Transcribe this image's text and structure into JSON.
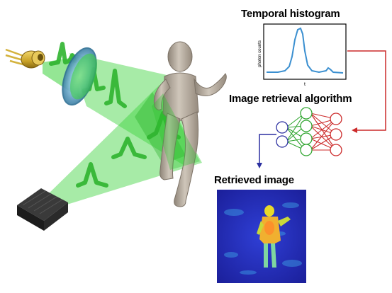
{
  "figure": {
    "histogram": {
      "title": "Temporal histogram",
      "ylabel": "photon counts",
      "xlabel": "t",
      "curve_color": "#3a8fd0"
    },
    "network": {
      "title": "Image retrieval algorithm",
      "input_color": "#cc2a2a",
      "hidden_color": "#2fa52f",
      "output_color": "#2b2fa0"
    },
    "retrieved": {
      "title": "Retrieved image"
    },
    "colors": {
      "beam": "#3cd23c",
      "laser_body": "#c9a227",
      "detector": "#222222",
      "figure_body": "#b3a89a"
    }
  }
}
